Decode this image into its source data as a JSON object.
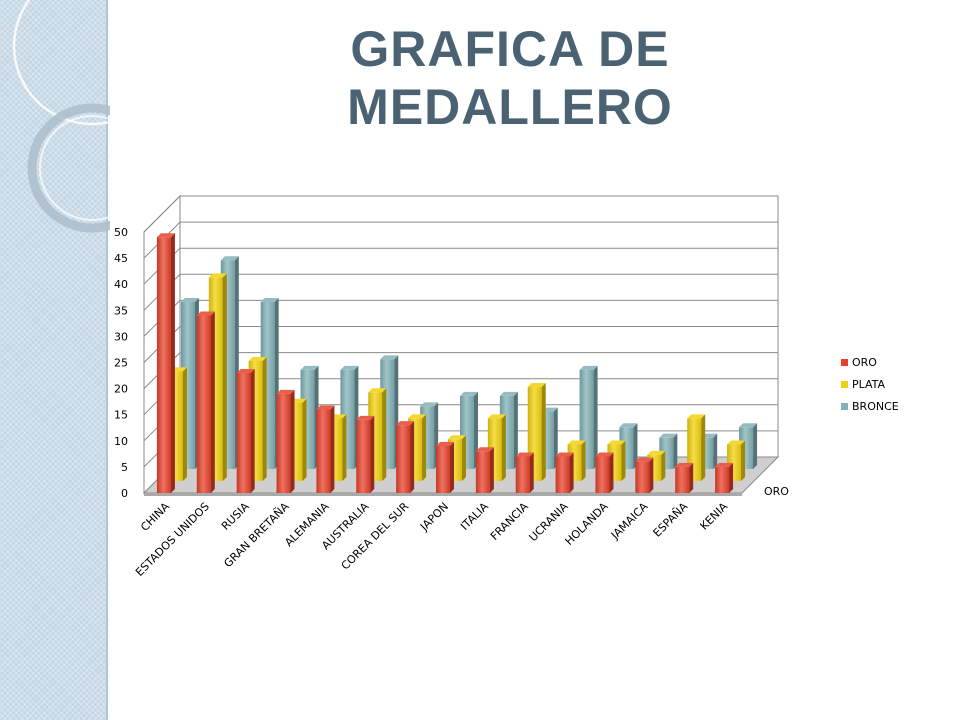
{
  "slide": {
    "title_line1": "GRAFICA DE",
    "title_line2": "MEDALLERO"
  },
  "colors": {
    "panel": "#c3d6e4",
    "title": "#4a6272",
    "oro": "#e8412b",
    "plata": "#f2d10c",
    "bronce": "#82b1b6"
  },
  "chart_data": {
    "type": "bar",
    "style": "3d-clustered-column",
    "categories": [
      "CHINA",
      "ESTADOS UNIDOS",
      "RUSIA",
      "GRAN BRETAÑA",
      "ALEMANIA",
      "AUSTRALIA",
      "COREA DEL SUR",
      "JAPON",
      "ITALIA",
      "FRANCIA",
      "UCRANIA",
      "HOLANDA",
      "JAMAICA",
      "ESPAÑA",
      "KENIA"
    ],
    "series": [
      {
        "name": "ORO",
        "color": "#e8412b",
        "values": [
          49,
          34,
          23,
          19,
          16,
          14,
          13,
          9,
          8,
          7,
          7,
          7,
          6,
          5,
          5
        ]
      },
      {
        "name": "PLATA",
        "color": "#f2d10c",
        "values": [
          21,
          39,
          23,
          15,
          12,
          17,
          12,
          8,
          12,
          18,
          7,
          7,
          5,
          12,
          7
        ]
      },
      {
        "name": "BRONCE",
        "color": "#82b1b6",
        "values": [
          32,
          40,
          32,
          19,
          19,
          21,
          12,
          14,
          14,
          11,
          19,
          8,
          6,
          6,
          8
        ]
      }
    ],
    "ylim": [
      0,
      50
    ],
    "yticks": [
      "0",
      "5",
      "10",
      "15",
      "20",
      "25",
      "30",
      "35",
      "40",
      "45",
      "50"
    ],
    "depth_axis_label": "ORO",
    "grid": true,
    "legend": "right"
  }
}
